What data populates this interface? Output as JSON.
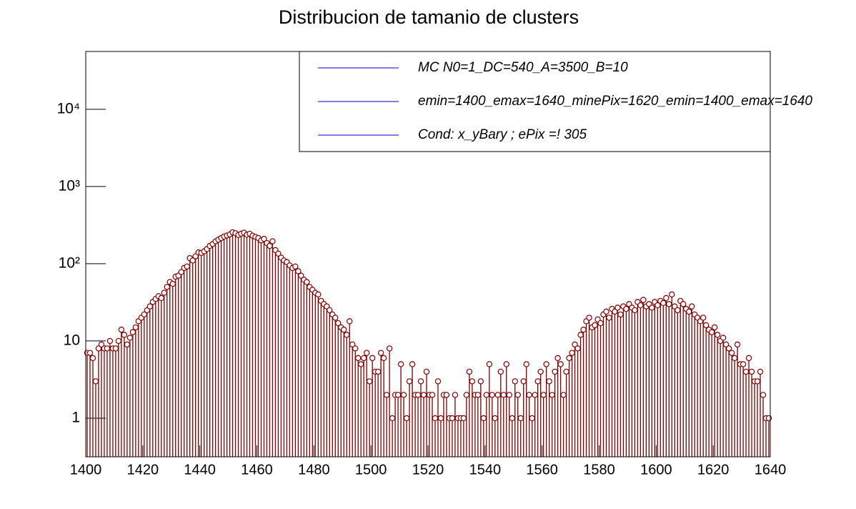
{
  "chart_data": {
    "type": "histogram",
    "title": "Distribucion de tamanio de clusters",
    "legend_entries": [
      "MC N0=1_DC=540_A=3500_B=10",
      "emin=1400_emax=1640_minePix=1620_emin=1400_emax=1640",
      "Cond: x_yBary ; ePix =! 305"
    ],
    "legend_color": "#0000cc",
    "color": "#7a0000",
    "log_y": true,
    "xlim": [
      1400,
      1640
    ],
    "xticks": [
      1400,
      1420,
      1440,
      1460,
      1480,
      1500,
      1520,
      1540,
      1560,
      1580,
      1600,
      1620,
      1640
    ],
    "ylim": [
      0.316,
      56000
    ],
    "yticks": [
      1,
      10,
      {
        "value": 100,
        "label": "10²"
      },
      {
        "value": 1000,
        "label": "10³"
      },
      {
        "value": 10000,
        "label": "10⁴"
      }
    ],
    "bins": [
      1400,
      1401,
      1402,
      1403,
      1404,
      1405,
      1406,
      1407,
      1408,
      1409,
      1410,
      1411,
      1412,
      1413,
      1414,
      1415,
      1416,
      1417,
      1418,
      1419,
      1420,
      1421,
      1422,
      1423,
      1424,
      1425,
      1426,
      1427,
      1428,
      1429,
      1430,
      1431,
      1432,
      1433,
      1434,
      1435,
      1436,
      1437,
      1438,
      1439,
      1440,
      1441,
      1442,
      1443,
      1444,
      1445,
      1446,
      1447,
      1448,
      1449,
      1450,
      1451,
      1452,
      1453,
      1454,
      1455,
      1456,
      1457,
      1458,
      1459,
      1460,
      1461,
      1462,
      1463,
      1464,
      1465,
      1466,
      1467,
      1468,
      1469,
      1470,
      1471,
      1472,
      1473,
      1474,
      1475,
      1476,
      1477,
      1478,
      1479,
      1480,
      1481,
      1482,
      1483,
      1484,
      1485,
      1486,
      1487,
      1488,
      1489,
      1490,
      1491,
      1492,
      1493,
      1494,
      1495,
      1496,
      1497,
      1498,
      1499,
      1500,
      1501,
      1502,
      1503,
      1504,
      1505,
      1506,
      1507,
      1508,
      1509,
      1510,
      1511,
      1512,
      1513,
      1514,
      1515,
      1516,
      1517,
      1518,
      1519,
      1520,
      1521,
      1522,
      1523,
      1524,
      1525,
      1526,
      1527,
      1528,
      1529,
      1530,
      1531,
      1532,
      1533,
      1534,
      1535,
      1536,
      1537,
      1538,
      1539,
      1540,
      1541,
      1542,
      1543,
      1544,
      1545,
      1546,
      1547,
      1548,
      1549,
      1550,
      1551,
      1552,
      1553,
      1554,
      1555,
      1556,
      1557,
      1558,
      1559,
      1560,
      1561,
      1562,
      1563,
      1564,
      1565,
      1566,
      1567,
      1568,
      1569,
      1570,
      1571,
      1572,
      1573,
      1574,
      1575,
      1576,
      1577,
      1578,
      1579,
      1580,
      1581,
      1582,
      1583,
      1584,
      1585,
      1586,
      1587,
      1588,
      1589,
      1590,
      1591,
      1592,
      1593,
      1594,
      1595,
      1596,
      1597,
      1598,
      1599,
      1600,
      1601,
      1602,
      1603,
      1604,
      1605,
      1606,
      1607,
      1608,
      1609,
      1610,
      1611,
      1612,
      1613,
      1614,
      1615,
      1616,
      1617,
      1618,
      1619,
      1620,
      1621,
      1622,
      1623,
      1624,
      1625,
      1626,
      1627,
      1628,
      1629,
      1630,
      1631,
      1632,
      1633,
      1634,
      1635,
      1636,
      1637,
      1638,
      1639,
      1640
    ],
    "values": [
      7,
      7,
      6,
      3,
      8,
      9,
      8,
      8,
      10,
      8,
      8,
      10,
      14,
      12,
      9,
      11,
      13,
      15,
      18,
      20,
      22,
      25,
      28,
      32,
      35,
      38,
      36,
      42,
      50,
      58,
      55,
      68,
      70,
      78,
      88,
      92,
      118,
      110,
      125,
      140,
      138,
      145,
      155,
      170,
      180,
      195,
      205,
      215,
      225,
      232,
      240,
      255,
      248,
      236,
      245,
      252,
      238,
      244,
      230,
      222,
      215,
      200,
      210,
      185,
      170,
      195,
      150,
      135,
      120,
      110,
      105,
      95,
      88,
      92,
      80,
      70,
      62,
      58,
      50,
      46,
      42,
      40,
      33,
      30,
      28,
      25,
      22,
      20,
      17,
      15,
      14,
      12,
      18,
      9,
      8,
      6,
      5,
      6,
      7,
      3,
      6,
      4,
      4,
      7,
      6,
      2,
      8,
      1,
      2,
      2,
      5,
      2,
      1,
      3,
      5,
      2,
      2,
      3,
      2,
      4,
      2,
      2,
      1,
      3,
      1,
      2,
      2,
      1,
      1,
      2,
      1,
      1,
      1,
      2,
      4,
      3,
      2,
      2,
      3,
      1,
      2,
      5,
      2,
      1,
      2,
      4,
      2,
      5,
      2,
      1,
      3,
      2,
      1,
      3,
      5,
      2,
      1,
      2,
      3,
      4,
      2,
      5,
      3,
      2,
      4,
      6,
      5,
      2,
      4,
      6,
      7,
      9,
      8,
      12,
      14,
      18,
      20,
      15,
      16,
      19,
      17,
      22,
      24,
      20,
      26,
      24,
      27,
      22,
      28,
      26,
      30,
      27,
      25,
      32,
      29,
      34,
      28,
      30,
      27,
      32,
      29,
      33,
      31,
      36,
      30,
      40,
      28,
      25,
      33,
      30,
      26,
      24,
      28,
      22,
      20,
      18,
      20,
      16,
      14,
      13,
      15,
      12,
      10,
      11,
      9,
      8,
      7,
      6,
      9,
      5,
      5,
      4,
      6,
      4,
      3,
      3,
      4,
      2,
      1,
      1
    ]
  }
}
